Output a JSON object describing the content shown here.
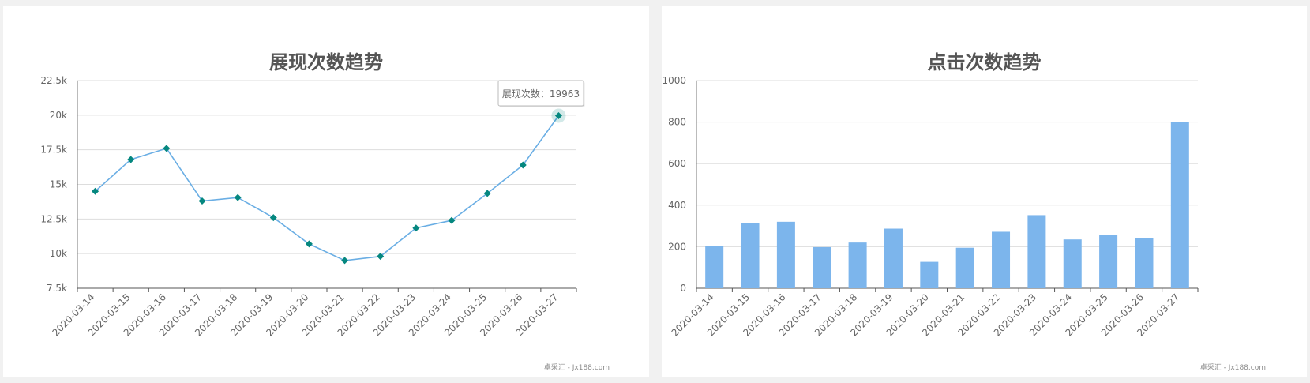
{
  "charts": {
    "impressions": {
      "title": "展现次数趋势",
      "credit": "卓采汇 - Jx188.com",
      "tooltip": {
        "label": "展现次数",
        "value": "19963"
      }
    },
    "clicks": {
      "title": "点击次数趋势",
      "credit": "卓采汇 - Jx188.com"
    }
  },
  "colors": {
    "line": "#6aaee4",
    "marker": "#05877f",
    "bar": "#7cb5ec",
    "grid": "#dddddd",
    "axis": "#555555",
    "title": "#555555"
  },
  "chart_data": [
    {
      "type": "line",
      "title": "展现次数趋势",
      "categories": [
        "2020-03-14",
        "2020-03-15",
        "2020-03-16",
        "2020-03-17",
        "2020-03-18",
        "2020-03-19",
        "2020-03-20",
        "2020-03-21",
        "2020-03-22",
        "2020-03-23",
        "2020-03-24",
        "2020-03-25",
        "2020-03-26",
        "2020-03-27"
      ],
      "series": [
        {
          "values": [
            14500,
            16800,
            17600,
            13800,
            14050,
            12600,
            10700,
            9500,
            9800,
            11850,
            12400,
            14350,
            16400,
            19963
          ]
        }
      ],
      "ylim": [
        7500,
        22500
      ],
      "yticks": [
        7500,
        10000,
        12500,
        15000,
        17500,
        20000,
        22500
      ],
      "ytick_labels": [
        "7.5k",
        "10k",
        "12.5k",
        "15k",
        "17.5k",
        "20k",
        "22.5k"
      ],
      "grid": true,
      "marker": "diamond",
      "highlight_index": 13
    },
    {
      "type": "bar",
      "title": "点击次数趋势",
      "categories": [
        "2020-03-14",
        "2020-03-15",
        "2020-03-16",
        "2020-03-17",
        "2020-03-18",
        "2020-03-19",
        "2020-03-20",
        "2020-03-21",
        "2020-03-22",
        "2020-03-23",
        "2020-03-24",
        "2020-03-25",
        "2020-03-26",
        "2020-03-27"
      ],
      "series": [
        {
          "values": [
            205,
            315,
            320,
            198,
            220,
            287,
            127,
            195,
            272,
            352,
            235,
            255,
            242,
            800
          ]
        }
      ],
      "ylim": [
        0,
        1000
      ],
      "yticks": [
        0,
        200,
        400,
        600,
        800,
        1000
      ],
      "ytick_labels": [
        "0",
        "200",
        "400",
        "600",
        "800",
        "1000"
      ],
      "grid": true
    }
  ]
}
